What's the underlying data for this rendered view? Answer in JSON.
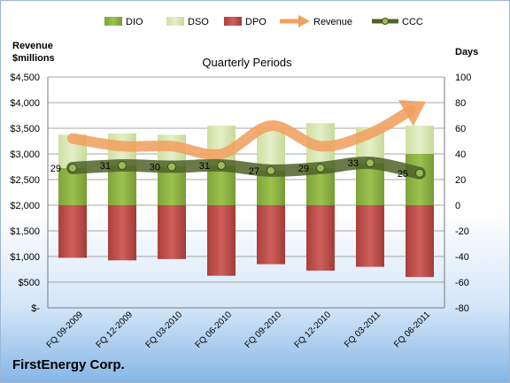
{
  "company": "FirstEnergy Corp.",
  "chart_data": {
    "type": "bar",
    "title": "Quarterly Periods",
    "left_axis_label": [
      "Revenue",
      "$millions"
    ],
    "right_axis_label": "Days",
    "categories": [
      "FQ 09-2009",
      "FQ 12-2009",
      "FQ 03-2010",
      "FQ 06-2010",
      "FQ 09-2010",
      "FQ 12-2010",
      "FQ 03-2011",
      "FQ 06-2011"
    ],
    "series": [
      {
        "name": "DIO",
        "color": "#8fb542",
        "values": [
          29,
          31,
          30,
          31,
          27,
          29,
          33,
          40
        ]
      },
      {
        "name": "DSO",
        "color": "#d8e8b0",
        "values": [
          26,
          25,
          25,
          31,
          31,
          35,
          28,
          22
        ]
      },
      {
        "name": "DPO",
        "color": "#c0504d",
        "values": [
          -41,
          -43,
          -42,
          -55,
          -46,
          -51,
          -48,
          -56
        ]
      },
      {
        "name": "Revenue",
        "color": "#f0a060",
        "values": [
          3300,
          3150,
          3150,
          3000,
          3550,
          3150,
          3400,
          3950
        ]
      },
      {
        "name": "CCC",
        "color": "#556b2f",
        "values": [
          29,
          31,
          30,
          31,
          27,
          29,
          33,
          25
        ]
      }
    ],
    "data_labels": [
      "29",
      "31",
      "30",
      "31",
      "27",
      "29",
      "33",
      "25"
    ],
    "left_axis": {
      "min": 0,
      "max": 4500,
      "step": 500,
      "tick_labels": [
        "$-",
        "$500",
        "$1,000",
        "$1,500",
        "$2,000",
        "$2,500",
        "$3,000",
        "$3,500",
        "$4,000",
        "$4,500"
      ]
    },
    "right_axis": {
      "min": -80,
      "max": 100,
      "step": 20,
      "tick_labels": [
        "-80",
        "-60",
        "-40",
        "-20",
        "0",
        "20",
        "40",
        "60",
        "80",
        "100"
      ]
    },
    "legend_position": "top",
    "gridlines": true
  }
}
